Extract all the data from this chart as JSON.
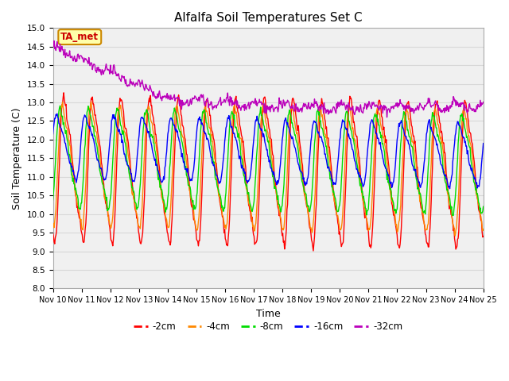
{
  "title": "Alfalfa Soil Temperatures Set C",
  "ylabel": "Soil Temperature (C)",
  "xlabel": "Time",
  "ylim": [
    8.0,
    15.0
  ],
  "yticks": [
    8.0,
    8.5,
    9.0,
    9.5,
    10.0,
    10.5,
    11.0,
    11.5,
    12.0,
    12.5,
    13.0,
    13.5,
    14.0,
    14.5,
    15.0
  ],
  "xtick_labels": [
    "Nov 10",
    "Nov 11",
    "Nov 12",
    "Nov 13",
    "Nov 14",
    "Nov 15",
    "Nov 16",
    "Nov 17",
    "Nov 18",
    "Nov 19",
    "Nov 20",
    "Nov 21",
    "Nov 22",
    "Nov 23",
    "Nov 24",
    "Nov 25"
  ],
  "colors": {
    "-2cm": "#ff0000",
    "-4cm": "#ff8800",
    "-8cm": "#00dd00",
    "-16cm": "#0000ff",
    "-32cm": "#bb00bb"
  },
  "bg_color": "#f0f0f0",
  "grid_color": "#d8d8d8",
  "annotation_text": "TA_met",
  "annotation_color": "#cc0000",
  "annotation_bg": "#ffffaa",
  "annotation_border": "#cc8800",
  "title_fontsize": 11,
  "tick_fontsize": 7.5,
  "label_fontsize": 9
}
